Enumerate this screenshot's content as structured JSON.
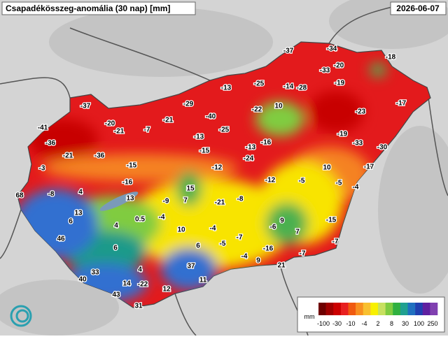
{
  "header": {
    "title": "Csapadékösszeg-anomália (30 nap) [mm]",
    "date": "2026-06-07"
  },
  "stations": [
    -37,
    -34,
    -18,
    -20,
    -33,
    -19,
    -13,
    -25,
    -14,
    -28,
    -17,
    -37,
    -29,
    10,
    -22,
    -23,
    -40,
    -41,
    -20,
    -7,
    -21,
    -21,
    -13,
    -25,
    -19,
    -36,
    -16,
    -33,
    -15,
    -13,
    -30,
    -21,
    -36,
    -24,
    -3,
    -15,
    -12,
    10,
    -17,
    -12,
    -5,
    -16,
    15,
    -5,
    -4,
    68,
    -8,
    4,
    13,
    -9,
    7,
    -21,
    -8,
    13,
    6,
    0.5,
    -4,
    9,
    -15,
    4,
    10,
    -4,
    -6,
    7,
    46,
    -7,
    -5,
    6,
    -7,
    6,
    -16,
    -4,
    -7,
    9,
    37,
    21,
    4,
    33,
    40,
    11,
    14,
    -22,
    12,
    43,
    31
  ],
  "legend": {
    "unit": "mm",
    "ticks": [
      -100,
      -30,
      -10,
      -4,
      2,
      8,
      30,
      100,
      250
    ],
    "colors": [
      "#6e0000",
      "#a00000",
      "#cc0000",
      "#e82020",
      "#f05a10",
      "#f89020",
      "#f8c030",
      "#f8f000",
      "#c8e060",
      "#80cc40",
      "#30b040",
      "#20a090",
      "#2070c0",
      "#2040b0",
      "#6020a0",
      "#8040b0"
    ]
  }
}
